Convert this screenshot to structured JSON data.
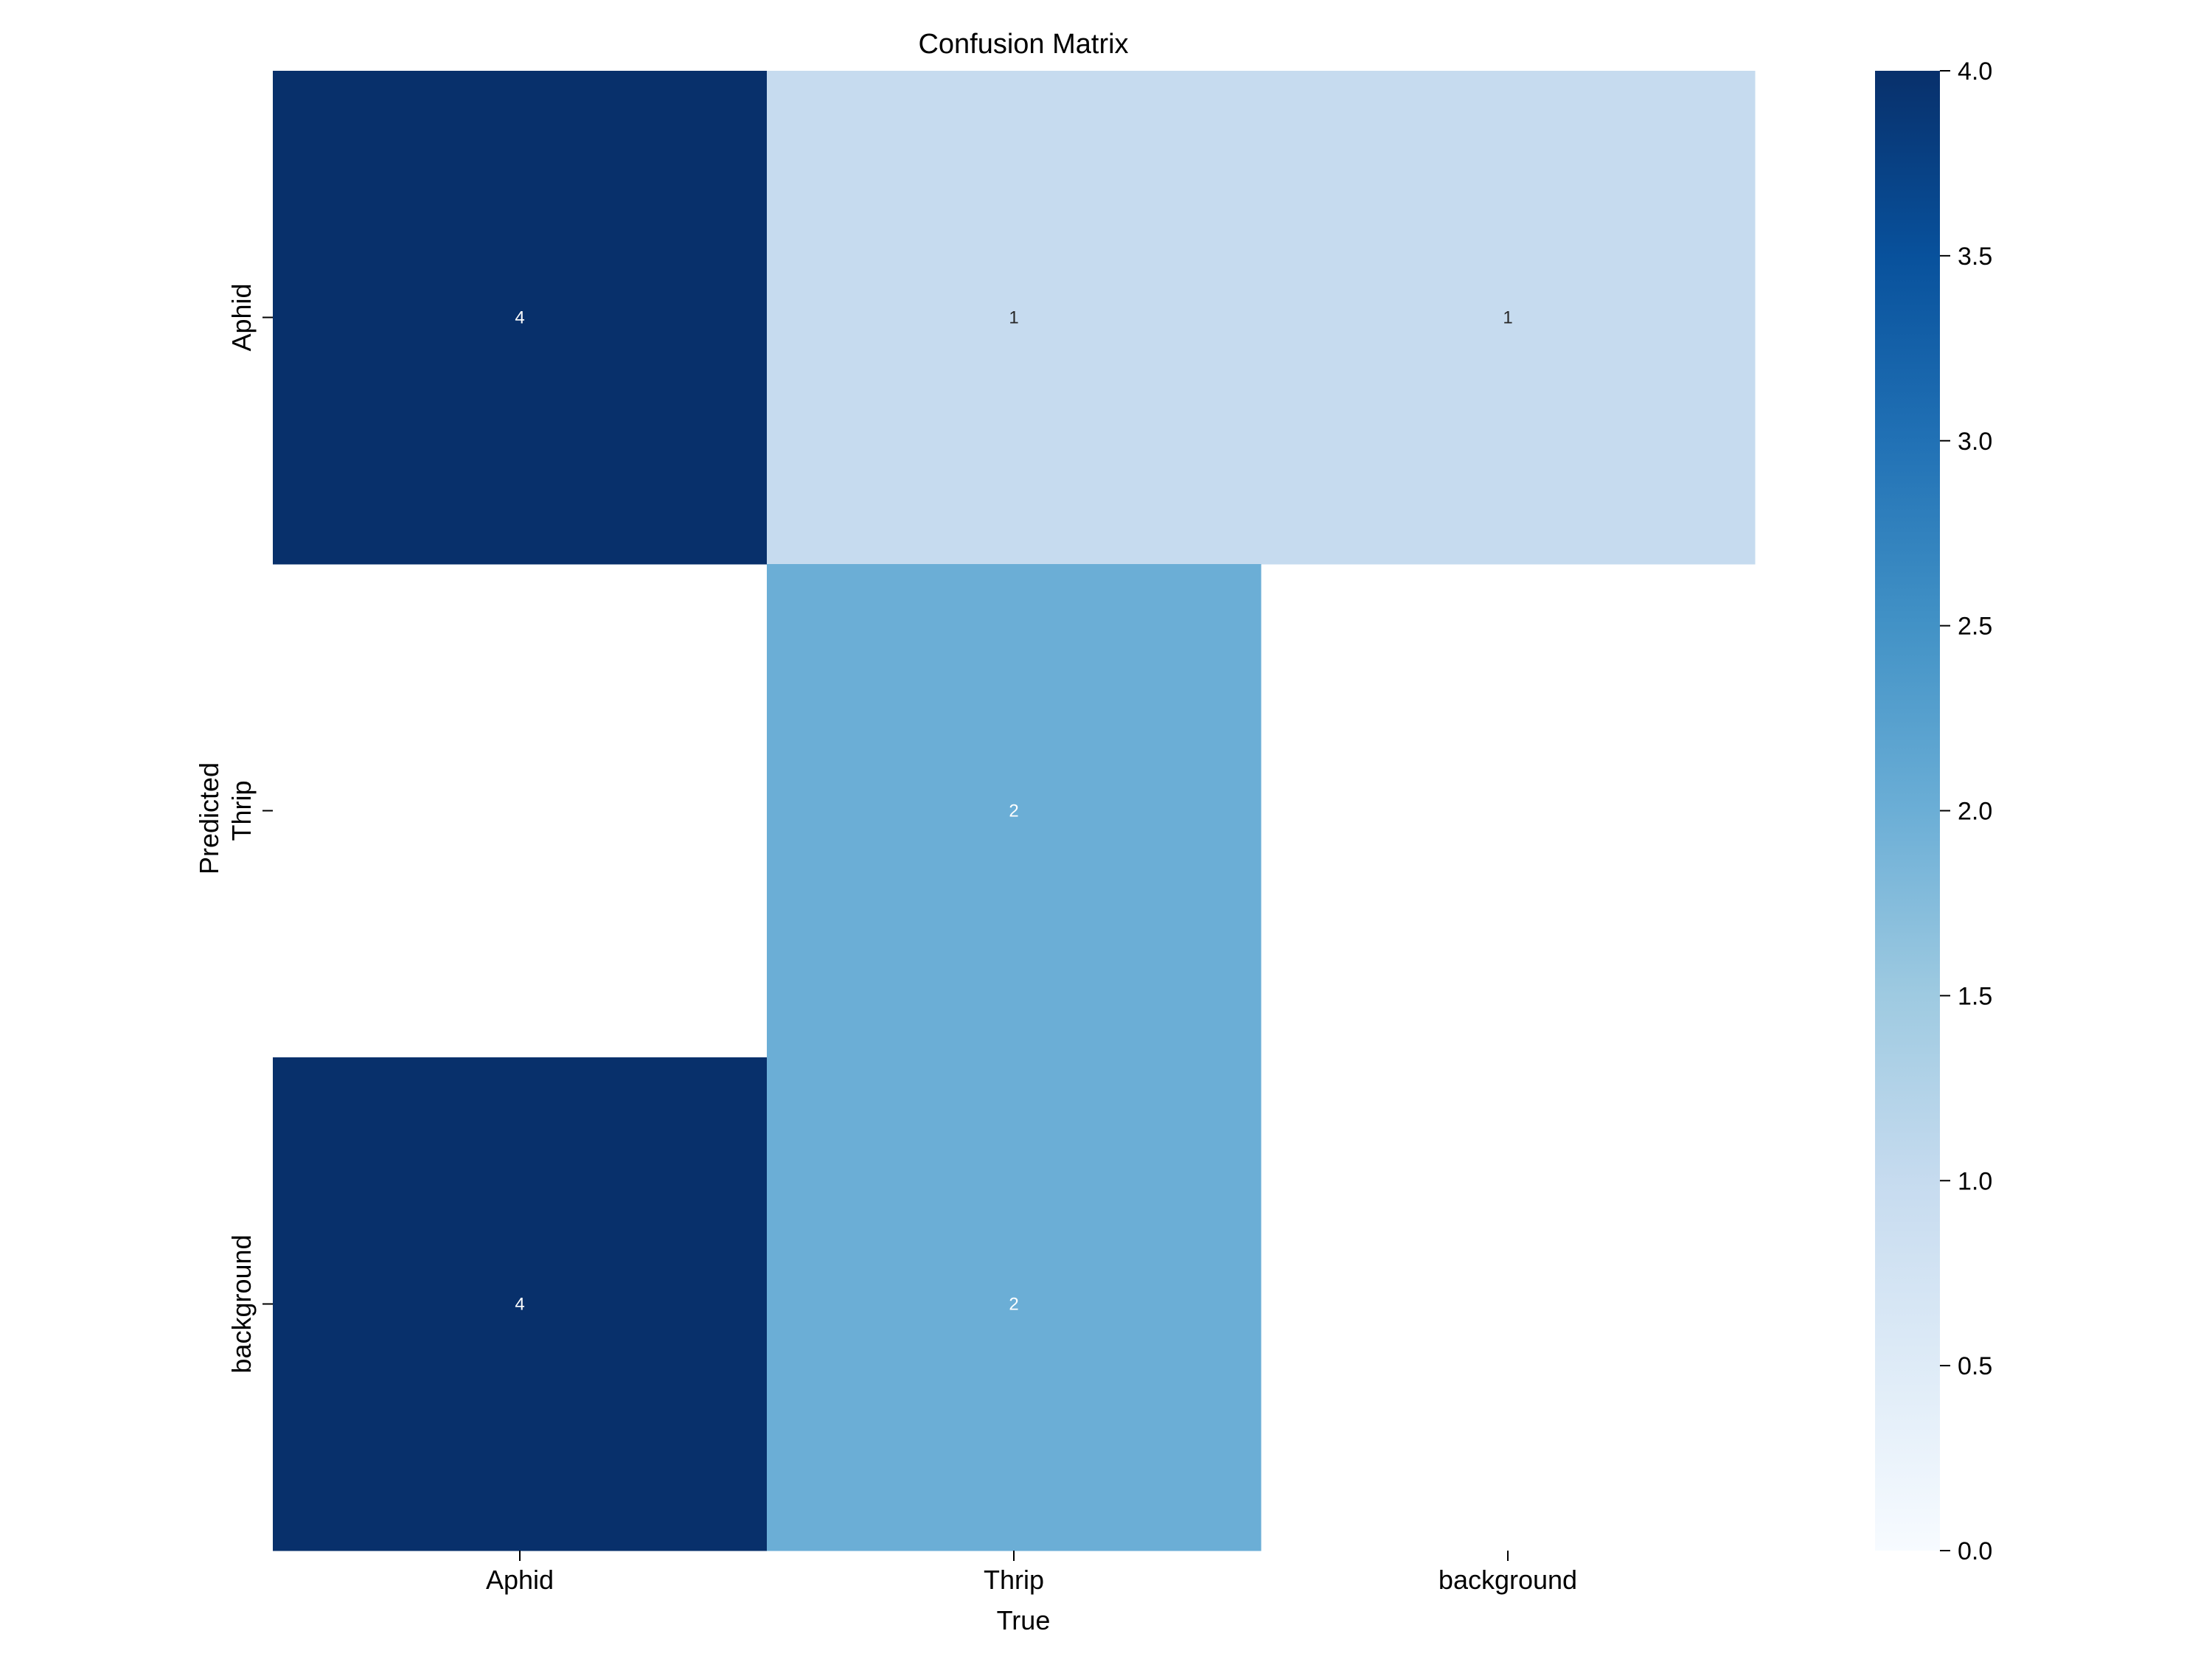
{
  "chart_data": {
    "type": "heatmap",
    "title": "Confusion Matrix",
    "xlabel": "True",
    "ylabel": "Predicted",
    "x_categories": [
      "Aphid",
      "Thrip",
      "background"
    ],
    "y_categories": [
      "Aphid",
      "Thrip",
      "background"
    ],
    "values": [
      [
        4,
        1,
        1
      ],
      [
        null,
        2,
        null
      ],
      [
        4,
        2,
        null
      ]
    ],
    "colormap": "Blues",
    "color_range": [
      0,
      4
    ],
    "colorbar_ticks": [
      "0.0",
      "0.5",
      "1.0",
      "1.5",
      "2.0",
      "2.5",
      "3.0",
      "3.5",
      "4.0"
    ],
    "empty_cells_blank": true,
    "grid": false
  }
}
